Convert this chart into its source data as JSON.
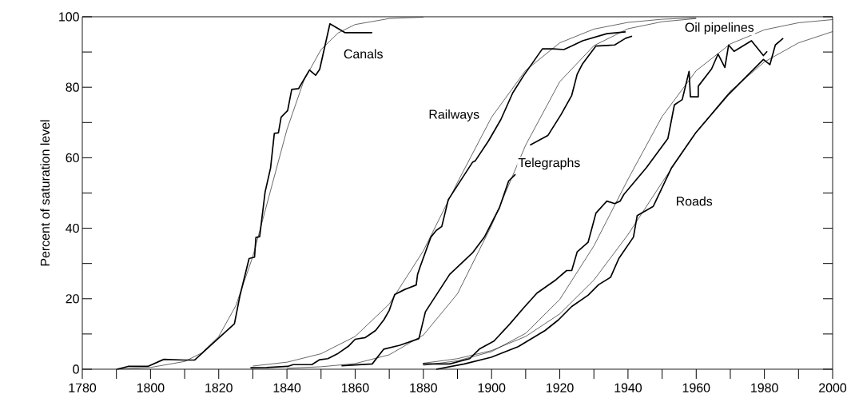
{
  "chart_data": {
    "type": "line",
    "ylabel": "Percent of saturation level",
    "xlim": [
      1780,
      2000
    ],
    "ylim": [
      0,
      100
    ],
    "xticks": [
      1780,
      {
        "value": 1790,
        "label": null
      },
      1800,
      {
        "value": 1810,
        "label": null
      },
      1820,
      {
        "value": 1830,
        "label": null
      },
      1840,
      {
        "value": 1850,
        "label": null
      },
      1860,
      {
        "value": 1870,
        "label": null
      },
      1880,
      {
        "value": 1890,
        "label": null
      },
      1900,
      {
        "value": 1910,
        "label": null
      },
      1920,
      {
        "value": 1930,
        "label": null
      },
      1940,
      {
        "value": 1950,
        "label": null
      },
      1960,
      {
        "value": 1970,
        "label": null
      },
      1980,
      {
        "value": 1990,
        "label": null
      },
      2000
    ],
    "yticks": [
      0,
      {
        "value": 10,
        "label": null
      },
      20,
      {
        "value": 30,
        "label": null
      },
      40,
      {
        "value": 50,
        "label": null
      },
      60,
      {
        "value": 70,
        "label": null
      },
      80,
      {
        "value": 90,
        "label": null
      },
      100
    ],
    "series": [
      {
        "name": "Canals",
        "color": "#000000",
        "x": [
          1790.2,
          1793.4,
          1799.2,
          1803.9,
          1809.8,
          1812.9,
          1824.6,
          1826.2,
          1828.9,
          1830.5,
          1830.9,
          1832.0,
          1833.6,
          1835.2,
          1836.3,
          1837.5,
          1838.3,
          1840.2,
          1841.4,
          1843.4,
          1846.6,
          1848.4,
          1849.6,
          1852.6,
          1857,
          1865
        ],
        "values": [
          0,
          0.8,
          0.8,
          2.8,
          2.6,
          2.6,
          12.9,
          20.8,
          31.4,
          31.8,
          37.4,
          37.6,
          50.3,
          57.1,
          66.9,
          67.1,
          71.5,
          73.4,
          79.4,
          79.6,
          84.9,
          83.4,
          85.1,
          98,
          95.5,
          95.5
        ]
      },
      {
        "name": "Railways",
        "color": "#000000",
        "x": [
          1829.3,
          1834,
          1840.2,
          1841.8,
          1847.3,
          1849.6,
          1852,
          1855,
          1858,
          1860,
          1863,
          1866,
          1868.4,
          1870.0,
          1871.6,
          1874.7,
          1877.9,
          1878.3,
          1879.1,
          1882.2,
          1883.8,
          1885.4,
          1887.3,
          1890.1,
          1894.4,
          1895.2,
          1899.1,
          1902.7,
          1906.2,
          1909.4,
          1914.9,
          1918.0,
          1921.2,
          1923.5,
          1926.7,
          1933.8,
          1939.3
        ],
        "values": [
          0.4,
          0.5,
          0.8,
          1.3,
          1.3,
          2.7,
          3,
          4.5,
          6.5,
          8.5,
          9,
          11,
          14.0,
          16.7,
          21.2,
          22.7,
          23.9,
          26.9,
          29.2,
          37.5,
          39.4,
          40.5,
          48.1,
          52.3,
          58.7,
          59.1,
          64.8,
          70.8,
          78.4,
          83.3,
          90.9,
          90.9,
          90.7,
          91.7,
          93.2,
          95.2,
          95.7
        ]
      },
      {
        "name": "Telegraphs",
        "color": "#000000",
        "x": [
          1856,
          1865,
          1868.4,
          1873.1,
          1878.7,
          1880.6,
          1887.7,
          1894.4,
          1897.9,
          1902.3,
          1905.0,
          1907.0,
          1909,
          1911.3,
          1916.5,
          1920.4,
          1923.5,
          1925.1,
          1926.7,
          1930.6,
          1936.1,
          1939.3,
          1941.2
        ],
        "values": [
          1,
          1.5,
          5.7,
          6.8,
          8.7,
          16.3,
          26.9,
          33.0,
          37.5,
          45.8,
          53.4,
          55.3,
          null,
          63.6,
          66.3,
          72.3,
          77.7,
          83.7,
          86.7,
          91.7,
          92.0,
          93.9,
          94.5
        ]
      },
      {
        "name": "Oil pipelines",
        "color": "#000000",
        "x": [
          1879.8,
          1887.7,
          1893.6,
          1896.4,
          1900.7,
          1905.4,
          1909.4,
          1913.3,
          1918.9,
          1922,
          1923.5,
          1925.1,
          1928.3,
          1930.6,
          1933.8,
          1936.1,
          1937.7,
          1938.8,
          1945.4,
          1951.7,
          1953.6,
          1955.9,
          1957.9,
          1958.3,
          1960.6,
          1960.6,
          1964.5,
          1966.4,
          1968.4,
          1969.5,
          1971.1,
          1976.2,
          1979.7,
          1980.8
        ],
        "values": [
          1.5,
          1.5,
          3.0,
          5.7,
          8.0,
          12.9,
          17.4,
          21.6,
          25.4,
          28,
          28,
          33.3,
          36,
          44.3,
          47.7,
          47,
          47.7,
          49.6,
          57.2,
          65.5,
          75,
          76.5,
          84.5,
          77.3,
          77.3,
          80.3,
          85.2,
          89.4,
          85.6,
          92,
          90.2,
          93.2,
          89,
          90.2
        ]
      },
      {
        "name": "Roads",
        "color": "#000000",
        "x": [
          1883.8,
          1892,
          1899.9,
          1907.8,
          1915.7,
          1919.6,
          1923.5,
          1928.3,
          1931.4,
          1934.9,
          1937.3,
          1941.6,
          1942.7,
          1947.4,
          1952.8,
          1959.8,
          1969.2,
          1979.7,
          1981.6,
          1983.2,
          1985.5
        ],
        "values": [
          0,
          1.5,
          3.4,
          6.4,
          11.0,
          14.0,
          17.8,
          21,
          24,
          26.1,
          31.4,
          37.5,
          43.6,
          46.2,
          57.2,
          67,
          77.7,
          87.9,
          86.4,
          92,
          93.9
        ]
      },
      {
        "color": "#000000",
        "x": [
          1790,
          1800,
          1810,
          1815,
          1820,
          1825,
          1830,
          1835,
          1840,
          1845,
          1850,
          1855,
          1860,
          1870,
          1880
        ],
        "values": [
          0.1,
          0.5,
          2.2,
          4.6,
          9.3,
          18,
          32,
          50,
          68,
          82,
          90.7,
          95.4,
          97.8,
          99.5,
          99.9
        ]
      },
      {
        "color": "#000000",
        "x": [
          1830,
          1840,
          1850,
          1860,
          1870,
          1880,
          1890,
          1900,
          1910,
          1920,
          1930,
          1940,
          1950,
          1960
        ],
        "values": [
          0.9,
          2.0,
          4.4,
          9.3,
          18.5,
          33.6,
          53.0,
          71.5,
          84.8,
          92.6,
          96.5,
          98.4,
          99.3,
          99.7
        ]
      },
      {
        "color": "#000000",
        "x": [
          1840,
          1850,
          1860,
          1870,
          1880,
          1890,
          1900,
          1910,
          1920,
          1930,
          1940,
          1950,
          1960
        ],
        "values": [
          0.3,
          0.7,
          1.6,
          4.1,
          9.7,
          21.4,
          40.8,
          63.6,
          81.6,
          91.8,
          96.6,
          98.6,
          99.5
        ]
      },
      {
        "color": "#000000",
        "x": [
          1880,
          1890,
          1900,
          1910,
          1920,
          1930,
          1940,
          1950,
          1960,
          1970,
          1980,
          1990,
          2000
        ],
        "values": [
          1.1,
          2.4,
          5.0,
          10.2,
          19.8,
          35,
          53.9,
          71.7,
          84.7,
          92.3,
          96.3,
          98.3,
          99.2
        ]
      },
      {
        "color": "#000000",
        "x": [
          1880,
          1890,
          1900,
          1910,
          1920,
          1930,
          1940,
          1950,
          1960,
          1970,
          1980,
          1990,
          2000
        ],
        "values": [
          1.7,
          3.0,
          5.3,
          9.3,
          15.7,
          25.3,
          38.2,
          53,
          67.3,
          78.9,
          87.2,
          92.6,
          95.8
        ]
      }
    ]
  }
}
